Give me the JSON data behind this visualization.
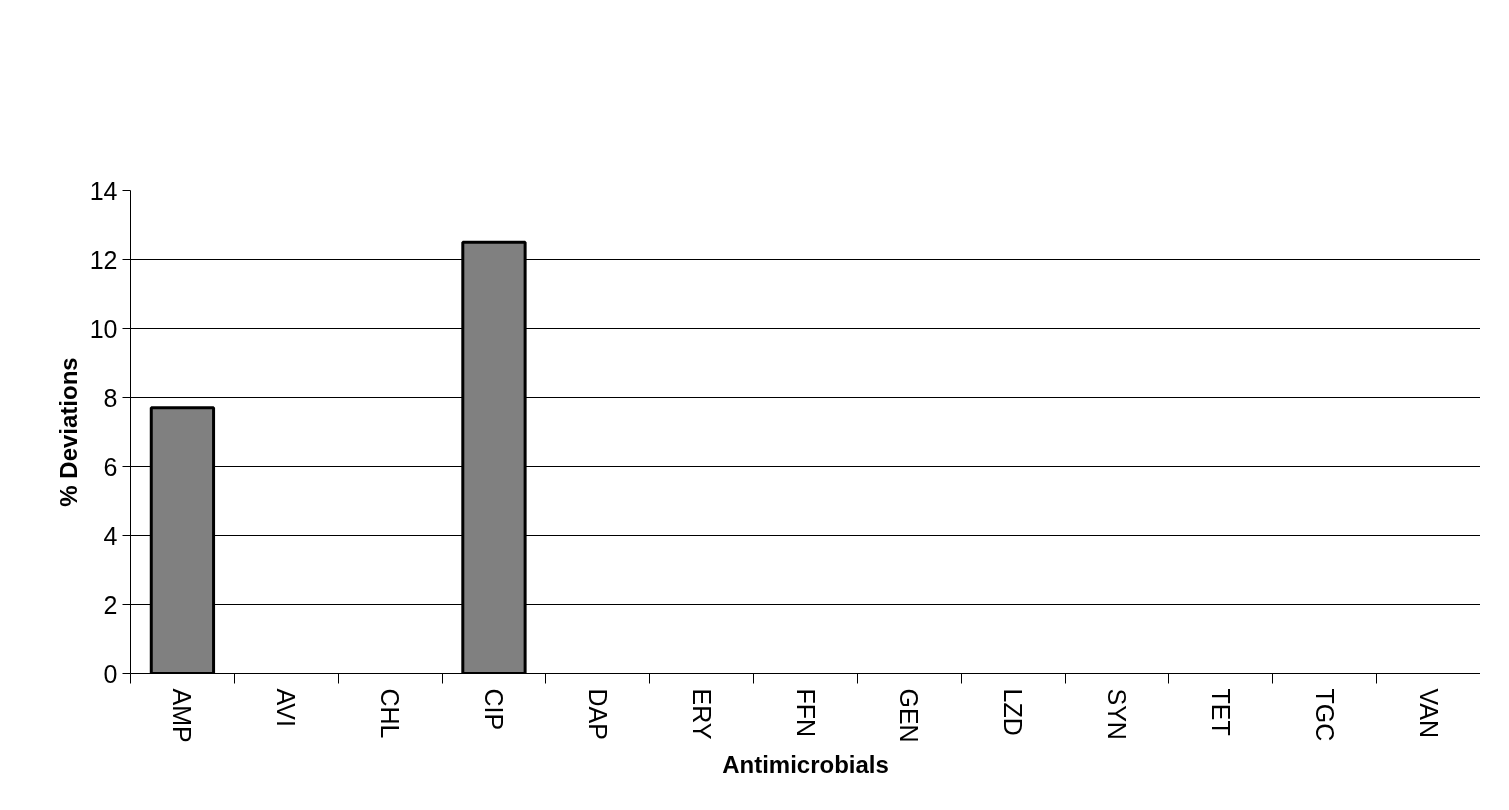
{
  "chart_data": {
    "type": "bar",
    "xlabel": "Antimicrobials",
    "ylabel": "% Deviations",
    "categories": [
      "AMP",
      "AVI",
      "CHL",
      "CIP",
      "DAP",
      "ERY",
      "FFN",
      "GEN",
      "LZD",
      "SYN",
      "TET",
      "TGC",
      "VAN"
    ],
    "values": [
      7.7,
      0,
      0,
      12.5,
      0,
      0,
      0,
      0,
      0,
      0,
      0,
      0,
      0
    ],
    "color": "#808080",
    "ylim": [
      0,
      14
    ],
    "yticks": [
      0,
      2,
      4,
      6,
      8,
      10,
      12,
      14
    ],
    "grid": "y"
  }
}
